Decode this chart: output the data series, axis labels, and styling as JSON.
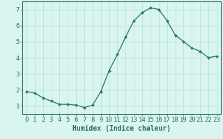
{
  "x": [
    0,
    1,
    2,
    3,
    4,
    5,
    6,
    7,
    8,
    9,
    10,
    11,
    12,
    13,
    14,
    15,
    16,
    17,
    18,
    19,
    20,
    21,
    22,
    23
  ],
  "y": [
    1.9,
    1.8,
    1.5,
    1.3,
    1.1,
    1.1,
    1.05,
    0.9,
    1.05,
    1.9,
    3.2,
    4.2,
    5.3,
    6.3,
    6.8,
    7.1,
    7.0,
    6.3,
    5.4,
    5.0,
    4.6,
    4.4,
    4.0,
    4.1
  ],
  "line_color": "#2e7d6e",
  "marker": "D",
  "marker_size": 2,
  "bg_color": "#d8f5ef",
  "grid_color": "#b8ddd6",
  "xlabel": "Humidex (Indice chaleur)",
  "xlim": [
    -0.5,
    23.5
  ],
  "ylim": [
    0.5,
    7.5
  ],
  "yticks": [
    1,
    2,
    3,
    4,
    5,
    6,
    7
  ],
  "xtick_labels": [
    "0",
    "1",
    "2",
    "3",
    "4",
    "5",
    "6",
    "7",
    "8",
    "9",
    "10",
    "11",
    "12",
    "13",
    "14",
    "15",
    "16",
    "17",
    "18",
    "19",
    "20",
    "21",
    "22",
    "23"
  ],
  "xlabel_fontsize": 7,
  "tick_fontsize": 6.5,
  "axis_color": "#2e6b5e",
  "linewidth": 1.0
}
